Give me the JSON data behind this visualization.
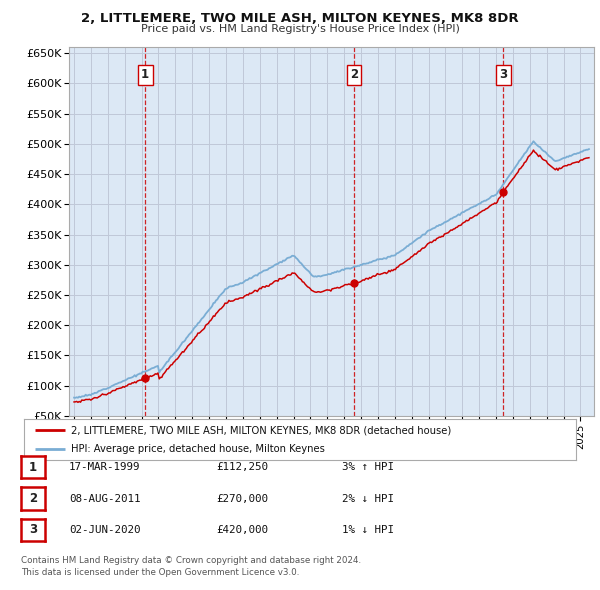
{
  "title": "2, LITTLEMERE, TWO MILE ASH, MILTON KEYNES, MK8 8DR",
  "subtitle": "Price paid vs. HM Land Registry's House Price Index (HPI)",
  "legend_label_red": "2, LITTLEMERE, TWO MILE ASH, MILTON KEYNES, MK8 8DR (detached house)",
  "legend_label_blue": "HPI: Average price, detached house, Milton Keynes",
  "table_rows": [
    [
      "1",
      "17-MAR-1999",
      "£112,250",
      "3% ↑ HPI"
    ],
    [
      "2",
      "08-AUG-2011",
      "£270,000",
      "2% ↓ HPI"
    ],
    [
      "3",
      "02-JUN-2020",
      "£420,000",
      "1% ↓ HPI"
    ]
  ],
  "footer": "Contains HM Land Registry data © Crown copyright and database right 2024.\nThis data is licensed under the Open Government Licence v3.0.",
  "vline_dates": [
    1999.21,
    2011.59,
    2020.42
  ],
  "sale_points_red": [
    [
      1999.21,
      112250
    ],
    [
      2011.59,
      270000
    ],
    [
      2020.42,
      420000
    ]
  ],
  "ylim": [
    50000,
    660000
  ],
  "yticks": [
    50000,
    100000,
    150000,
    200000,
    250000,
    300000,
    350000,
    400000,
    450000,
    500000,
    550000,
    600000,
    650000
  ],
  "xlim": [
    1994.7,
    2025.8
  ],
  "background_color": "#ffffff",
  "grid_color": "#c0c8d8",
  "plot_bg": "#dce8f5",
  "red_color": "#cc0000",
  "blue_color": "#7aadd4",
  "vline_color": "#cc0000"
}
